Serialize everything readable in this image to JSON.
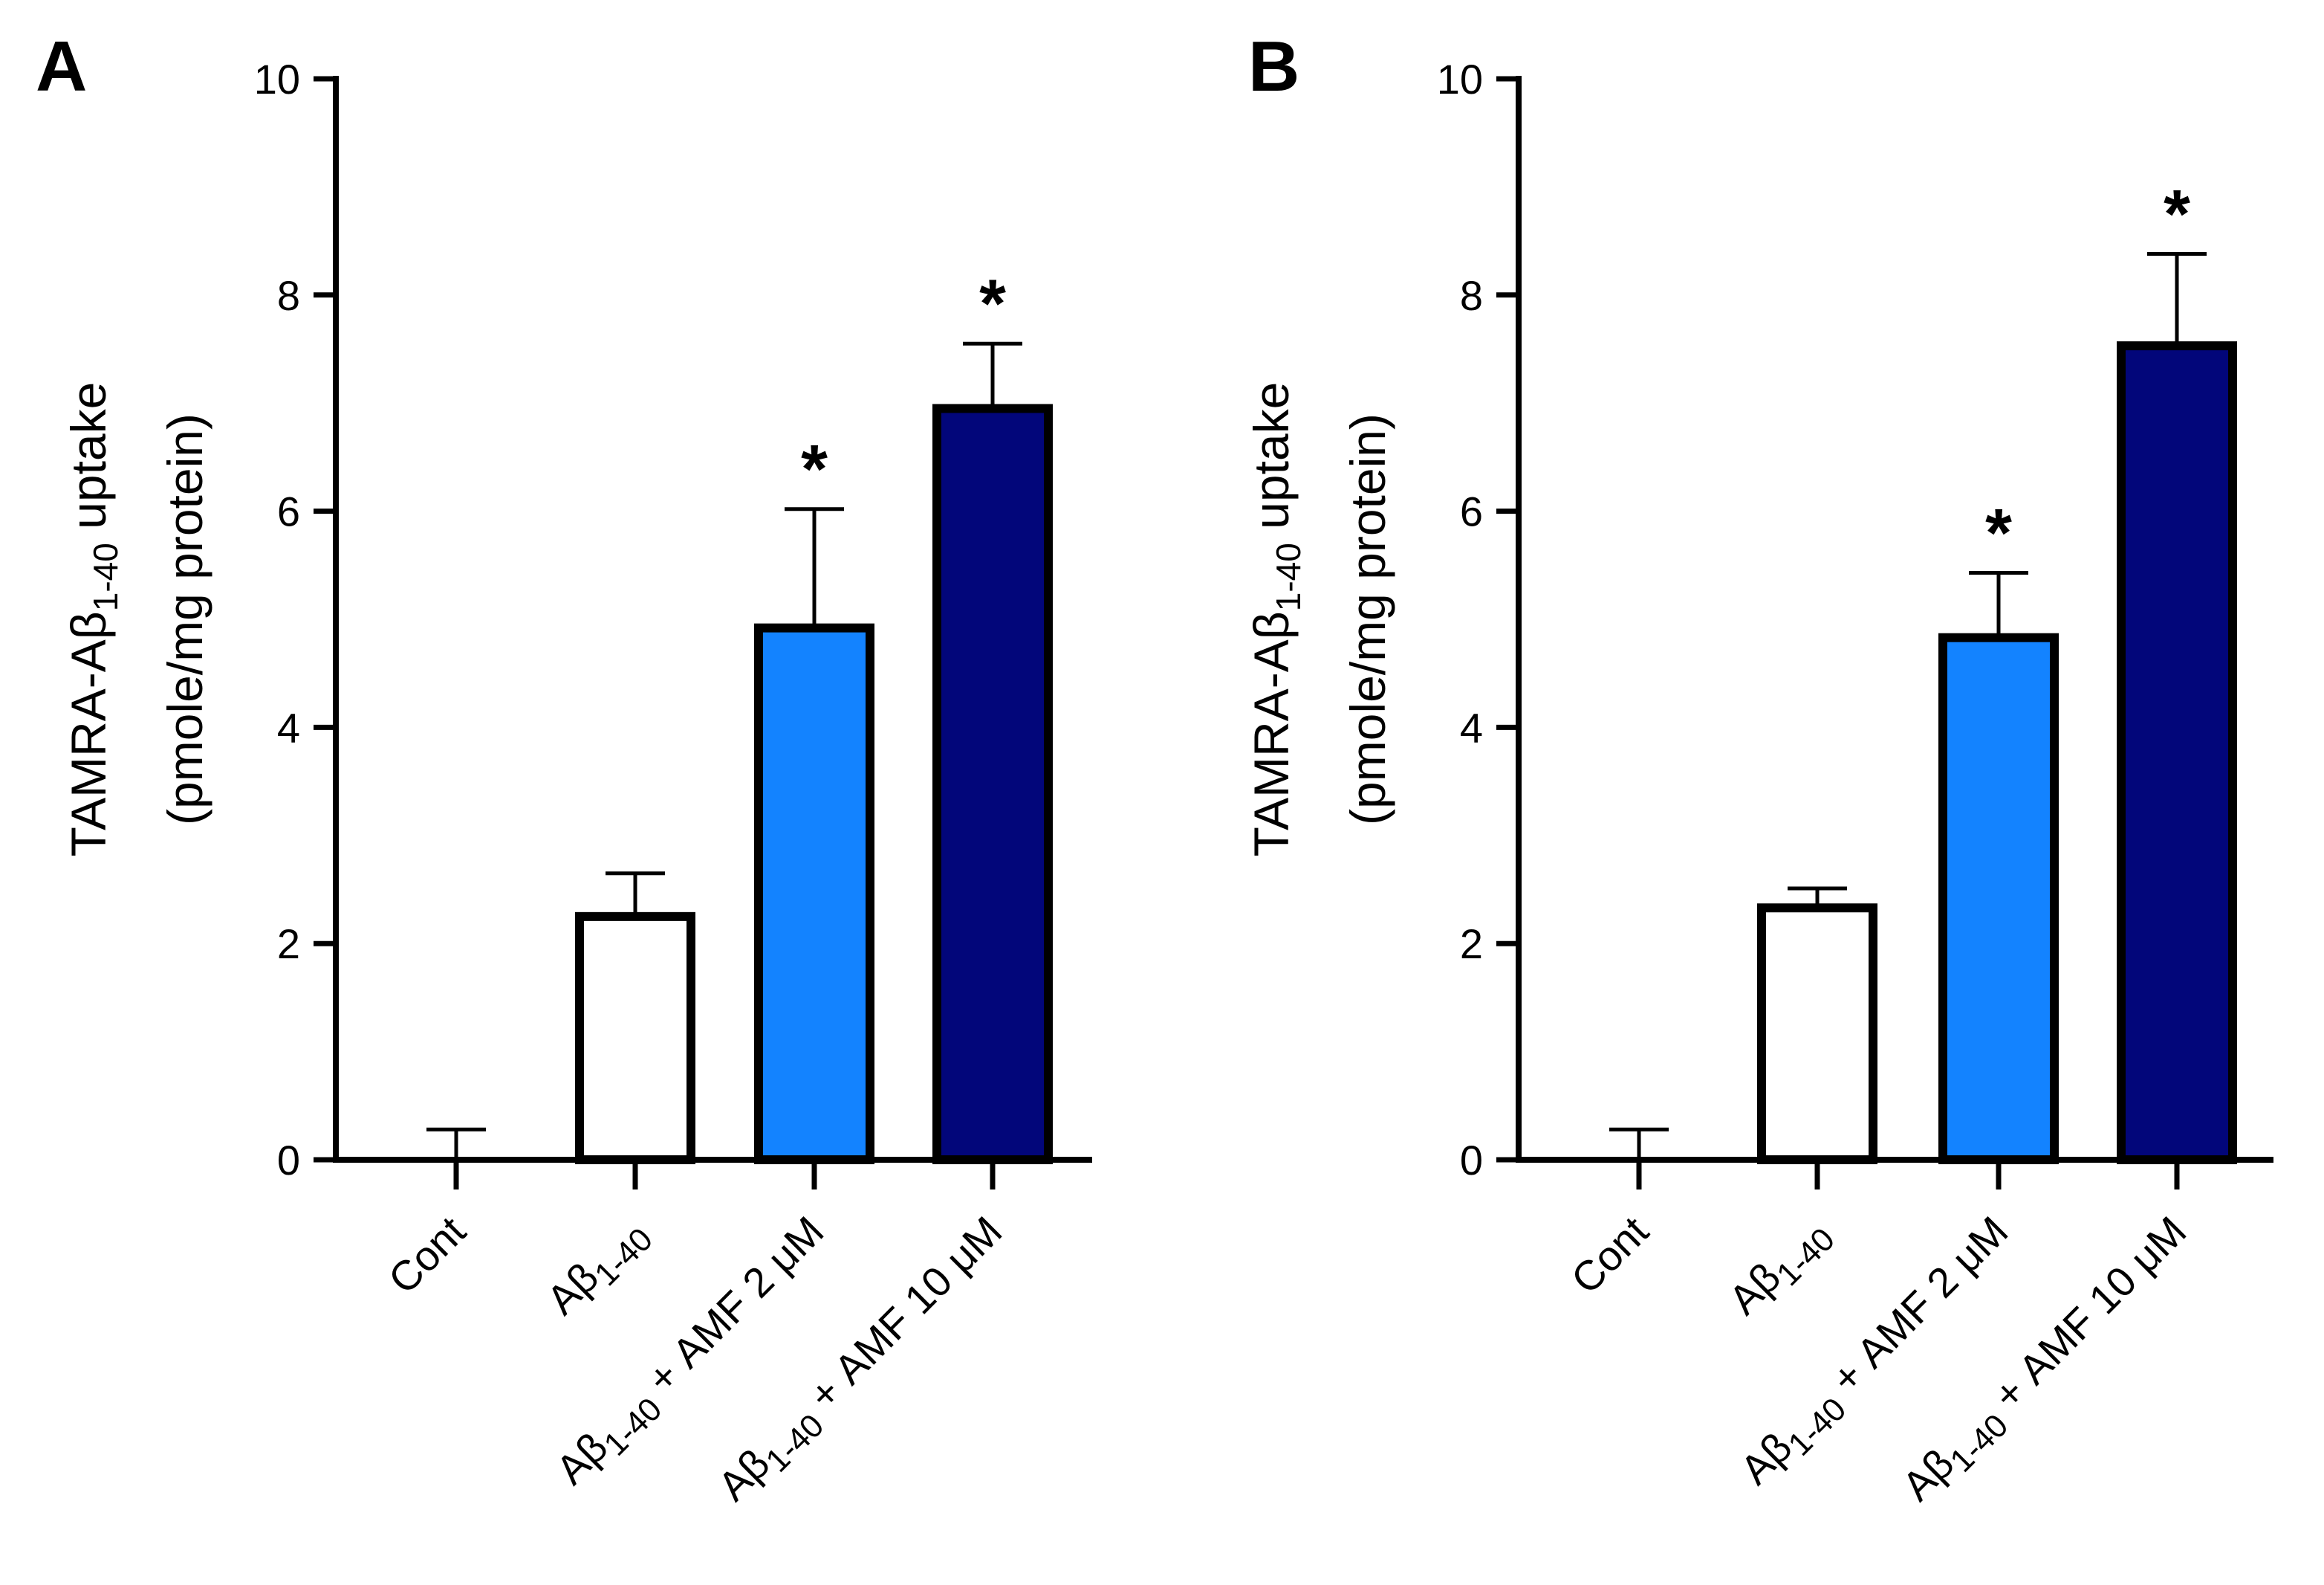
{
  "chart_data": [
    {
      "panel": "A",
      "type": "bar",
      "ylabel_line1_main": "TAMRA-Aβ",
      "ylabel_line1_sub": "1-40",
      "ylabel_line1_rest": " uptake",
      "ylabel_line2": "(pmole/mg protein)",
      "ylim": [
        0,
        10
      ],
      "yticks": [
        0,
        2,
        4,
        6,
        8,
        10
      ],
      "categories": [
        {
          "main": "Cont",
          "sub": "",
          "rest": ""
        },
        {
          "main": "Aβ",
          "sub": "1-40",
          "rest": ""
        },
        {
          "main": "Aβ",
          "sub": "1-40",
          "rest": " + AMF 2 μM"
        },
        {
          "main": "Aβ",
          "sub": "1-40",
          "rest": " + AMF 10 μM"
        }
      ],
      "values": [
        0.0,
        2.25,
        4.92,
        6.95
      ],
      "errors": [
        0.28,
        0.4,
        1.1,
        0.6
      ],
      "significance": [
        "",
        "",
        "*",
        "*"
      ],
      "colors": [
        "#ffffff",
        "#ffffff",
        "#1383ff",
        "#02067a"
      ]
    },
    {
      "panel": "B",
      "type": "bar",
      "ylabel_line1_main": "TAMRA-Aβ",
      "ylabel_line1_sub": "1-40",
      "ylabel_line1_rest": " uptake",
      "ylabel_line2": "(pmole/mg protein)",
      "ylim": [
        0,
        10
      ],
      "yticks": [
        0,
        2,
        4,
        6,
        8,
        10
      ],
      "categories": [
        {
          "main": "Cont",
          "sub": "",
          "rest": ""
        },
        {
          "main": "Aβ",
          "sub": "1-40",
          "rest": ""
        },
        {
          "main": "Aβ",
          "sub": "1-40",
          "rest": " + AMF 2 μM"
        },
        {
          "main": "Aβ",
          "sub": "1-40",
          "rest": " + AMF 10 μM"
        }
      ],
      "values": [
        0.0,
        2.33,
        4.83,
        7.53
      ],
      "errors": [
        0.28,
        0.18,
        0.6,
        0.85
      ],
      "significance": [
        "",
        "",
        "*",
        "*"
      ],
      "colors": [
        "#ffffff",
        "#ffffff",
        "#1383ff",
        "#02067a"
      ]
    }
  ]
}
